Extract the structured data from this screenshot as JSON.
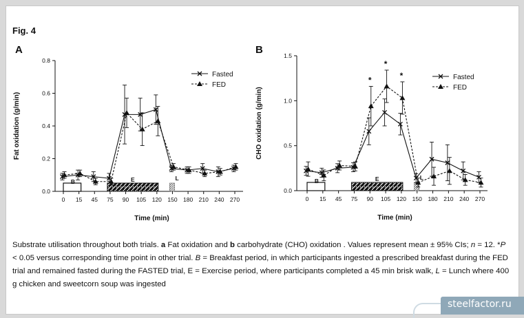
{
  "figure": {
    "label": "Fig. 4",
    "caption": {
      "s1": "Substrate utilisation throughout both trials. ",
      "s2": "a",
      "s3": " Fat oxidation and ",
      "s4": "b",
      "s5": " carbohydrate (CHO) oxidation . Values represent mean ± 95% CIs; ",
      "s6": "n",
      "s7": " = 12. *",
      "s8": "P",
      "s9": " < 0.05 versus corresponding time point in other trial. ",
      "s10": "B",
      "s11": " = Breakfast period, in which participants ingested a prescribed breakfast during the FED trial and remained fasted during the FASTED trial, E = Exercise period, where participants completed a 45 min brisk walk, ",
      "s12": "L",
      "s13": " = Lunch where 400 g chicken and sweetcorn soup was ingested"
    }
  },
  "watermark": "steelfactor.ru",
  "colors": {
    "ink": "#111111",
    "card": "#ffffff",
    "background": "#d9d9d9",
    "watermark": "#8fa8b8"
  },
  "chart_data": [
    {
      "type": "line",
      "panel_label": "A",
      "ylabel": "Fat oxidation (g/min)",
      "xlabel": "Time (min)",
      "x": [
        0,
        15,
        45,
        75,
        90,
        105,
        120,
        150,
        180,
        210,
        240,
        270
      ],
      "x_ticks": [
        "0",
        "15",
        "45",
        "75",
        "90",
        "105",
        "120",
        "150",
        "180",
        "210",
        "240",
        "270"
      ],
      "ylim": [
        0,
        0.8
      ],
      "y_ticks": [
        "0.0",
        "0.2",
        "0.4",
        "0.6",
        "0.8"
      ],
      "grid": false,
      "legend_position": "top-right",
      "series": [
        {
          "name": "Fasted",
          "marker": "x",
          "dash": "solid",
          "values": [
            0.09,
            0.1,
            0.09,
            0.08,
            0.47,
            0.47,
            0.5,
            0.14,
            0.13,
            0.14,
            0.12,
            0.14
          ],
          "ci": [
            0.02,
            0.03,
            0.03,
            0.03,
            0.18,
            0.1,
            0.09,
            0.02,
            0.02,
            0.03,
            0.03,
            0.02
          ]
        },
        {
          "name": "FED",
          "marker": "triangle",
          "dash": "dashed",
          "values": [
            0.1,
            0.11,
            0.06,
            0.06,
            0.48,
            0.38,
            0.43,
            0.15,
            0.13,
            0.11,
            0.12,
            0.15
          ],
          "ci": [
            0.02,
            0.02,
            0.02,
            0.02,
            0.09,
            0.1,
            0.09,
            0.02,
            0.02,
            0.02,
            0.02,
            0.02
          ]
        }
      ],
      "periods": [
        {
          "label": "B",
          "start": 0,
          "end": 15,
          "fill": "empty"
        },
        {
          "label": "E",
          "start": 75,
          "end": 120,
          "fill": "black-pattern"
        },
        {
          "label": "L",
          "start": 150,
          "end": 150,
          "fill": "hatched"
        }
      ]
    },
    {
      "type": "line",
      "panel_label": "B",
      "ylabel": "CHO oxidation (g/min)",
      "xlabel": "Time (min)",
      "x": [
        0,
        15,
        45,
        75,
        90,
        105,
        120,
        150,
        180,
        210,
        240,
        270
      ],
      "x_ticks": [
        "0",
        "15",
        "45",
        "75",
        "90",
        "105",
        "120",
        "150",
        "180",
        "210",
        "240",
        "270"
      ],
      "ylim": [
        0,
        1.5
      ],
      "y_ticks": [
        "0.0",
        "0.5",
        "1.0",
        "1.5"
      ],
      "grid": false,
      "legend_position": "top-right",
      "significance_marker": "*",
      "significant_x": [
        90,
        105,
        120
      ],
      "series": [
        {
          "name": "Fasted",
          "marker": "x",
          "dash": "solid",
          "values": [
            0.22,
            0.2,
            0.25,
            0.26,
            0.66,
            0.87,
            0.74,
            0.14,
            0.35,
            0.31,
            0.22,
            0.15
          ],
          "ci": [
            0.05,
            0.05,
            0.05,
            0.05,
            0.15,
            0.15,
            0.12,
            0.05,
            0.19,
            0.2,
            0.1,
            0.06
          ]
        },
        {
          "name": "FED",
          "marker": "triangle",
          "dash": "dashed",
          "values": [
            0.24,
            0.17,
            0.28,
            0.27,
            0.94,
            1.16,
            1.03,
            0.09,
            0.16,
            0.22,
            0.12,
            0.09
          ],
          "ci": [
            0.08,
            0.06,
            0.05,
            0.05,
            0.22,
            0.18,
            0.18,
            0.05,
            0.1,
            0.15,
            0.06,
            0.05
          ]
        }
      ],
      "periods": [
        {
          "label": "B",
          "start": 0,
          "end": 15,
          "fill": "empty"
        },
        {
          "label": "E",
          "start": 75,
          "end": 120,
          "fill": "black-pattern"
        },
        {
          "label": "L",
          "start": 150,
          "end": 150,
          "fill": "hatched"
        }
      ]
    }
  ]
}
